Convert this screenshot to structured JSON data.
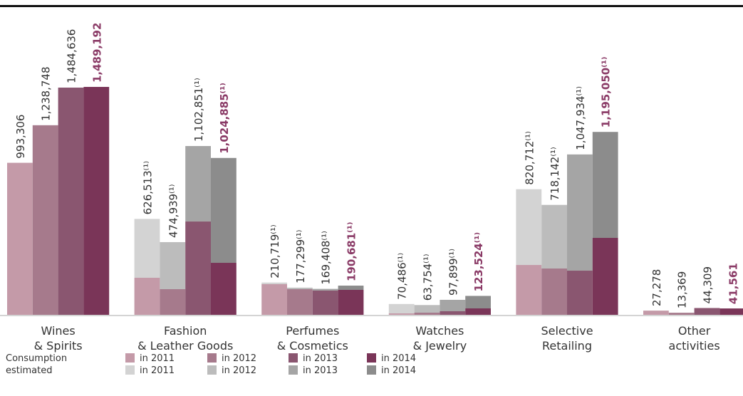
{
  "chart_data": {
    "type": "stacked-grouped-bar",
    "categories": [
      [
        "Wines",
        "& Spirits"
      ],
      [
        "Fashion",
        "& Leather Goods"
      ],
      [
        "Perfumes",
        "& Cosmetics"
      ],
      [
        "Watches",
        "& Jewelry"
      ],
      [
        "Selective",
        "Retailing"
      ],
      [
        "Other",
        "activities"
      ]
    ],
    "ylim": [
      0,
      1500000
    ],
    "stacks": [
      {
        "name": "Consumption",
        "series": [
          {
            "name": "in 2011",
            "color": "#c49aa8",
            "values": [
              993306,
              242000,
              200100,
              9300,
              325700,
              27278
            ]
          },
          {
            "name": "in 2012",
            "color": "#a67a8c",
            "values": [
              1238748,
              167500,
              167500,
              14000,
              302500,
              13369
            ]
          },
          {
            "name": "in 2013",
            "color": "#8a5670",
            "values": [
              1484636,
              609600,
              158200,
              23300,
              288500,
              44309
            ]
          },
          {
            "name": "in 2014",
            "color": "#7a3558",
            "values": [
              1489192,
              339700,
              162900,
              41900,
              502600,
              41561
            ]
          }
        ]
      },
      {
        "name": "estimated",
        "series": [
          {
            "name": "in 2011",
            "color": "#d3d3d3",
            "values": [
              null,
              384513,
              10619,
              61186,
              495012,
              null
            ]
          },
          {
            "name": "in 2012",
            "color": "#bcbcbc",
            "values": [
              null,
              307439,
              9799,
              49754,
              415642,
              null
            ]
          },
          {
            "name": "in 2013",
            "color": "#a5a5a5",
            "values": [
              null,
              493251,
              11208,
              74599,
              759434,
              null
            ]
          },
          {
            "name": "in 2014",
            "color": "#8c8c8c",
            "values": [
              null,
              685185,
              27781,
              81624,
              692450,
              null
            ]
          }
        ]
      }
    ],
    "total_labels": [
      [
        "993,306",
        "626,513⁽¹⁾",
        "210,719⁽¹⁾",
        "70,486⁽¹⁾",
        "820,712⁽¹⁾",
        "27,278"
      ],
      [
        "1,238,748",
        "474,939⁽¹⁾",
        "177,299⁽¹⁾",
        "63,754⁽¹⁾",
        "718,142⁽¹⁾",
        "13,369"
      ],
      [
        "1,484,636",
        "1,102,851⁽¹⁾",
        "169,408⁽¹⁾",
        "97,899⁽¹⁾",
        "1,047,934⁽¹⁾",
        "44,309"
      ],
      [
        "1,489,192",
        "1,024,885⁽¹⁾",
        "190,681⁽¹⁾",
        "123,524⁽¹⁾",
        "1,195,050⁽¹⁾",
        "41,561"
      ]
    ],
    "highlight_color": "#8a3a66"
  }
}
